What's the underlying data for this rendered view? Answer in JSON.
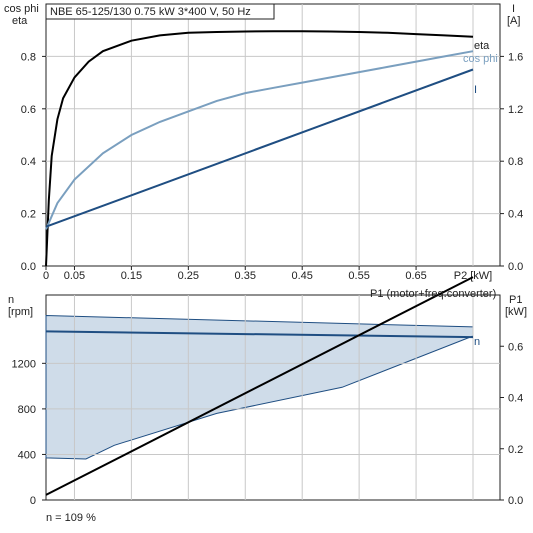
{
  "header": {
    "title": "NBE 65-125/130   0.75 kW   3*400 V, 50 Hz"
  },
  "chart_data": [
    {
      "type": "line",
      "id": "efficiency-chart",
      "title": "NBE 65-125/130   0.75 kW   3*400 V, 50 Hz",
      "left_axis_labels": [
        "cos phi",
        "eta"
      ],
      "right_axis_labels": [
        "I",
        "[A]"
      ],
      "xlabel": "P2 [kW]",
      "xlim": [
        0,
        0.75
      ],
      "xticks": [
        0,
        0.05,
        0.15,
        0.25,
        0.35,
        0.45,
        0.55,
        0.65
      ],
      "xtick_labels": [
        "0",
        "0.05",
        "0.15",
        "0.25",
        "0.35",
        "0.45",
        "0.55",
        "0.65",
        "P2 [kW]"
      ],
      "ylim_left": [
        0,
        1.0
      ],
      "yticks_left": [
        0,
        0.2,
        0.4,
        0.6,
        0.8
      ],
      "ytick_labels_left": [
        "0.0",
        "0.2",
        "0.4",
        "0.6",
        "0.8"
      ],
      "ylim_right": [
        0,
        2.0
      ],
      "yticks_right": [
        0,
        0.4,
        0.8,
        1.2,
        1.6
      ],
      "ytick_labels_right": [
        "0.0",
        "0.4",
        "0.8",
        "1.2",
        "1.6"
      ],
      "grid": true,
      "series": [
        {
          "name": "eta",
          "axis": "left",
          "color": "#000000",
          "x": [
            0,
            0.005,
            0.01,
            0.02,
            0.03,
            0.05,
            0.075,
            0.1,
            0.15,
            0.2,
            0.25,
            0.3,
            0.35,
            0.4,
            0.45,
            0.5,
            0.55,
            0.6,
            0.65,
            0.7,
            0.75
          ],
          "y": [
            0,
            0.25,
            0.42,
            0.56,
            0.64,
            0.72,
            0.78,
            0.82,
            0.86,
            0.88,
            0.89,
            0.893,
            0.895,
            0.896,
            0.896,
            0.895,
            0.893,
            0.89,
            0.885,
            0.88,
            0.875
          ]
        },
        {
          "name": "cos phi",
          "axis": "left",
          "color": "#7a9fbf",
          "x": [
            0,
            0.02,
            0.05,
            0.1,
            0.15,
            0.2,
            0.25,
            0.3,
            0.35,
            0.4,
            0.45,
            0.5,
            0.55,
            0.6,
            0.65,
            0.7,
            0.75
          ],
          "y": [
            0.14,
            0.24,
            0.33,
            0.43,
            0.5,
            0.55,
            0.59,
            0.63,
            0.66,
            0.68,
            0.7,
            0.72,
            0.74,
            0.76,
            0.78,
            0.8,
            0.82
          ]
        },
        {
          "name": "I",
          "axis": "right",
          "color": "#1f4e82",
          "x": [
            0,
            0.75
          ],
          "y": [
            0.3,
            1.5
          ]
        }
      ]
    },
    {
      "type": "line",
      "id": "speed-power-chart",
      "left_axis_labels": [
        "n",
        "[rpm]"
      ],
      "right_axis_labels": [
        "P1",
        "[kW]"
      ],
      "xlim": [
        0,
        0.75
      ],
      "ylim_left": [
        0,
        1800
      ],
      "yticks_left": [
        0,
        400,
        800,
        1200
      ],
      "ytick_labels_left": [
        "0",
        "400",
        "800",
        "1200"
      ],
      "ylim_right": [
        0,
        0.8
      ],
      "yticks_right": [
        0,
        0.2,
        0.4,
        0.6
      ],
      "ytick_labels_right": [
        "0.0",
        "0.2",
        "0.4",
        "0.6"
      ],
      "grid": true,
      "footnote": "n = 109 %",
      "operating_range": {
        "upper_boundary": {
          "x": [
            0,
            0.75
          ],
          "y": [
            1620,
            1520
          ]
        },
        "lower_boundary": {
          "x": [
            0,
            0.07,
            0.12,
            0.3,
            0.52,
            0.75
          ],
          "y": [
            370,
            360,
            480,
            760,
            990,
            1440
          ]
        }
      },
      "series": [
        {
          "name": "n",
          "axis": "left",
          "color": "#1f4e82",
          "x": [
            0,
            0.75
          ],
          "y": [
            1480,
            1430
          ]
        },
        {
          "name": "P1 (motor+freq.converter)",
          "axis": "right",
          "color": "#000000",
          "x": [
            0,
            0.75
          ],
          "y": [
            0.02,
            0.87
          ]
        }
      ]
    }
  ]
}
